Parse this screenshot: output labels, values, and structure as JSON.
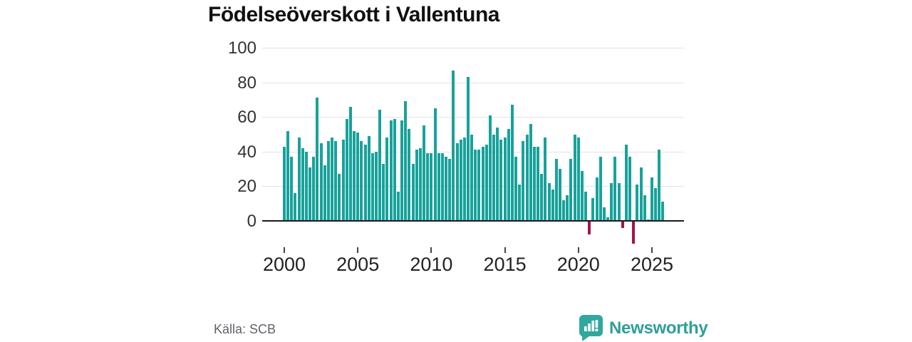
{
  "title": "Födelseöverskott i Vallentuna",
  "source_label": "Källa: SCB",
  "brand": {
    "name": "Newsworthy"
  },
  "colors": {
    "bar_positive": "#18a29b",
    "bar_negative": "#a11350",
    "axis": "#1a1a1a",
    "grid": "#e3e3e3",
    "brand_teal": "#2f9f97"
  },
  "chart_data": {
    "type": "bar",
    "title": "Födelseöverskott i Vallentuna",
    "frequency": "quarterly",
    "x_start": "2000-Q1",
    "x_end": "2025-Q4",
    "values": [
      43,
      52,
      37,
      16,
      48,
      42,
      40,
      31,
      37,
      71,
      45,
      32,
      46,
      48,
      46,
      27,
      47,
      59,
      66,
      52,
      51,
      46,
      44,
      49,
      39,
      40,
      64,
      33,
      48,
      58,
      59,
      17,
      58,
      69,
      53,
      33,
      41,
      42,
      55,
      39,
      39,
      65,
      39,
      39,
      37,
      36,
      87,
      45,
      47,
      48,
      83,
      50,
      41,
      41,
      43,
      44,
      61,
      50,
      54,
      47,
      48,
      53,
      67,
      37,
      21,
      46,
      50,
      56,
      43,
      43,
      27,
      48,
      22,
      18,
      36,
      30,
      12,
      15,
      36,
      50,
      48,
      29,
      17,
      -8,
      13,
      25,
      37,
      8,
      2,
      22,
      37,
      22,
      -4,
      44,
      37,
      -13,
      21,
      31,
      15,
      1,
      25,
      19,
      41,
      11
    ],
    "yticks": [
      0,
      20,
      40,
      60,
      80,
      100
    ],
    "ylim": [
      -16,
      100
    ],
    "xticklabels": [
      "2000",
      "2005",
      "2010",
      "2015",
      "2020",
      "2025"
    ],
    "grid": "horizontal",
    "legend": "none",
    "positive_color": "#18a29b",
    "negative_color": "#a11350"
  }
}
